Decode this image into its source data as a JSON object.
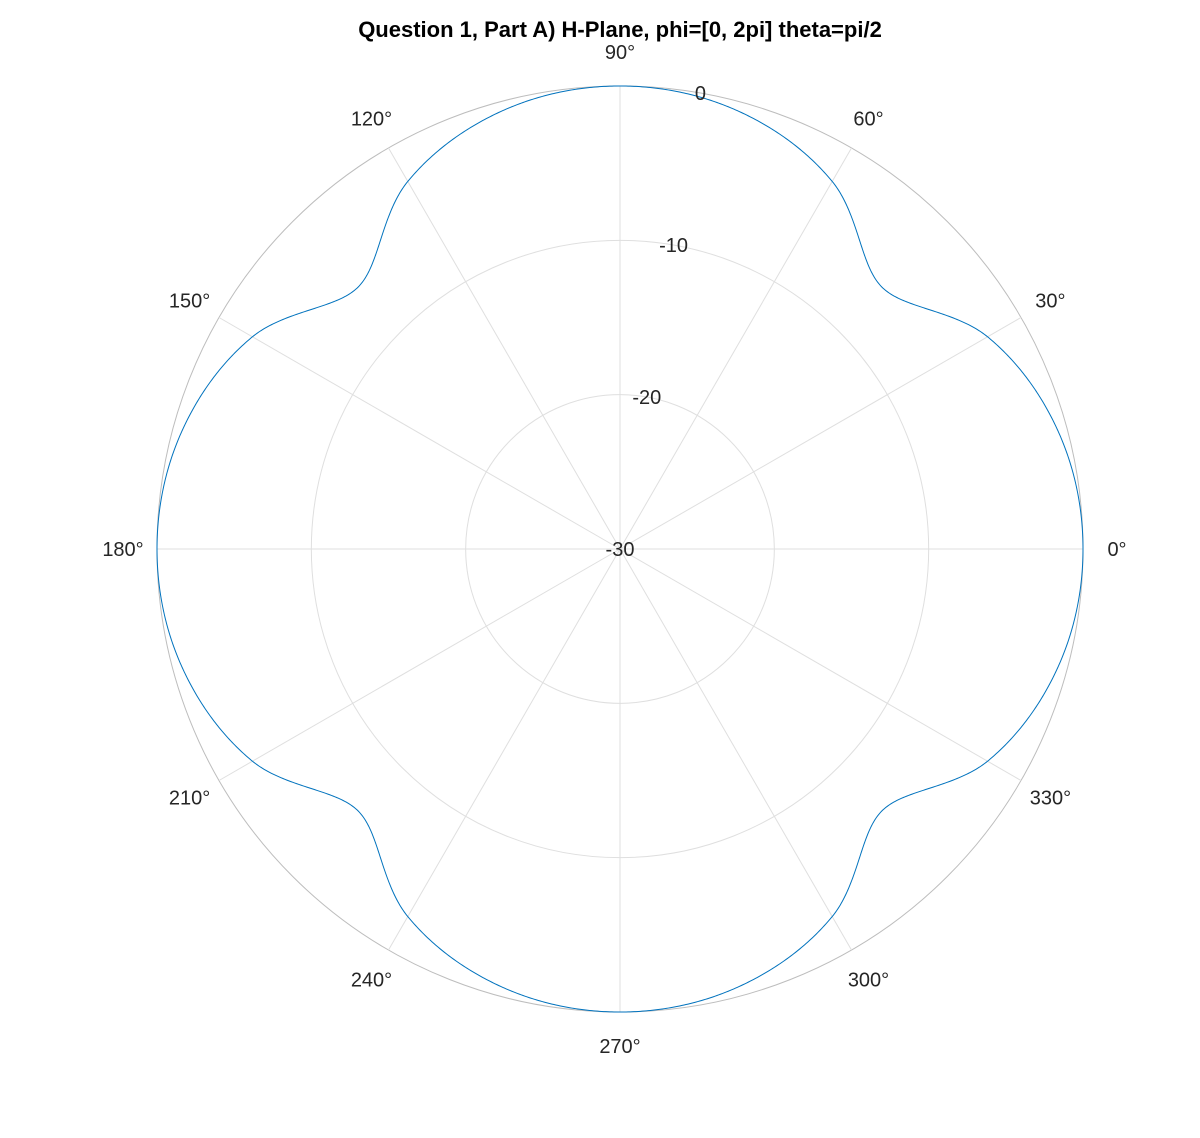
{
  "chart_data": {
    "type": "line",
    "projection": "polar",
    "title": "Question 1, Part A) H-Plane, phi=[0, 2pi] theta=pi/2",
    "theta_ticks_deg": [
      0,
      30,
      60,
      90,
      120,
      150,
      180,
      210,
      240,
      270,
      300,
      330
    ],
    "theta_tick_labels": [
      "0°",
      "30°",
      "60°",
      "90°",
      "120°",
      "150°",
      "180°",
      "210°",
      "240°",
      "270°",
      "300°",
      "330°"
    ],
    "r_ticks": [
      -30,
      -20,
      -10,
      0
    ],
    "r_tick_labels": [
      "-30",
      "-20",
      "-10",
      "0"
    ],
    "rlim": [
      -30,
      0
    ],
    "r_label_angle_deg": 80,
    "grid": true,
    "series": [
      {
        "color": "#0072bd",
        "phi_deg": [
          0,
          15,
          30,
          45,
          60,
          75,
          90,
          105,
          120,
          135,
          150,
          165,
          180,
          195,
          210,
          225,
          240,
          255,
          270,
          285,
          300,
          315,
          330,
          345,
          360
        ],
        "r_db": [
          0.0,
          -0.6,
          -2.5,
          -6.0,
          -2.5,
          -0.6,
          0.0,
          -0.6,
          -2.5,
          -6.0,
          -2.5,
          -0.6,
          0.0,
          -0.6,
          -2.5,
          -6.0,
          -2.5,
          -0.6,
          0.0,
          -0.6,
          -2.5,
          -6.0,
          -2.5,
          -0.6,
          0.0
        ]
      }
    ]
  }
}
